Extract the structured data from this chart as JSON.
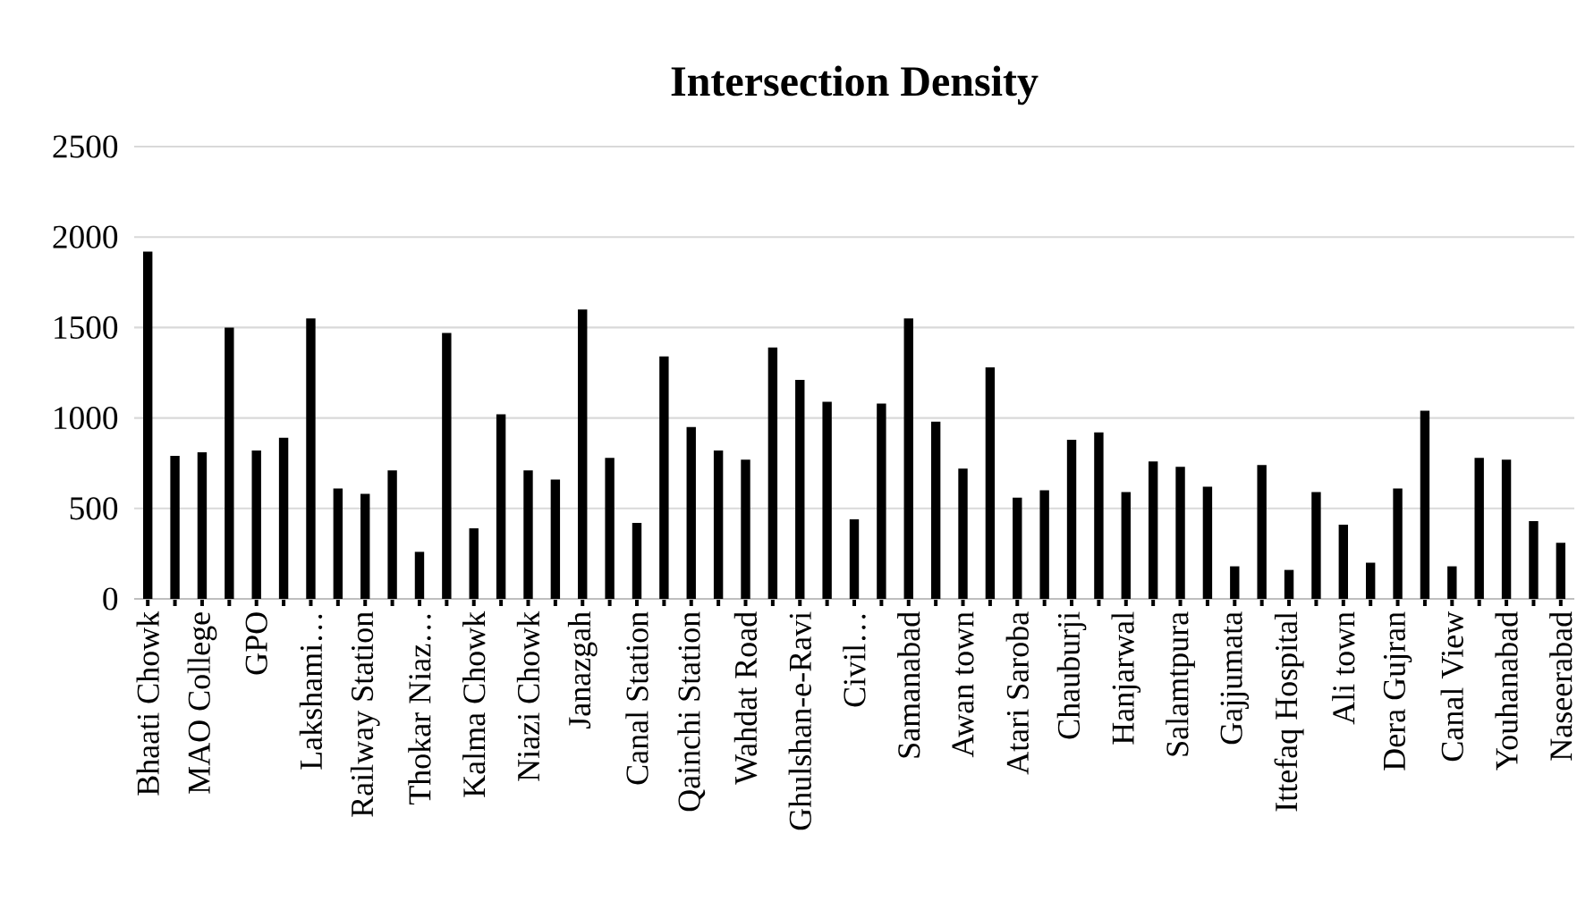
{
  "chart_data": {
    "type": "bar",
    "title": "Intersection Density",
    "categories": [
      "Bhaati Chowk",
      null,
      "MAO College",
      null,
      "GPO",
      null,
      "Lakshami…",
      null,
      "Railway Station",
      null,
      "Thokar Niaz…",
      null,
      "Kalma Chowk",
      null,
      "Niazi Chowk",
      null,
      "Janazgah",
      null,
      "Canal Station",
      null,
      "Qainchi Station",
      null,
      "Wahdat Road",
      null,
      "Ghulshan-e-Ravi",
      null,
      "Civil…",
      null,
      "Samanabad",
      null,
      "Awan town",
      null,
      "Atari Saroba",
      null,
      "Chauburji",
      null,
      "Hanjarwal",
      null,
      "Salamtpura",
      null,
      "Gajjumata",
      null,
      "Ittefaq Hospital",
      null,
      "Ali town",
      null,
      "Dera Gujran",
      null,
      "Canal View",
      null,
      "Youhanabad",
      null,
      "Naseerabad"
    ],
    "values": [
      1920,
      790,
      810,
      1500,
      820,
      890,
      1550,
      610,
      580,
      710,
      260,
      1470,
      390,
      1020,
      710,
      660,
      1600,
      780,
      420,
      1340,
      950,
      820,
      770,
      1390,
      1210,
      1090,
      440,
      1080,
      1550,
      980,
      720,
      1280,
      560,
      600,
      880,
      920,
      590,
      760,
      730,
      620,
      180,
      740,
      160,
      590,
      410,
      200,
      610,
      1040,
      180,
      780,
      770,
      430,
      310
    ],
    "color": "#000000",
    "ylim": [
      0,
      2500
    ],
    "yticks": [
      0,
      500,
      1000,
      1500,
      2000,
      2500
    ],
    "grid": "y"
  }
}
